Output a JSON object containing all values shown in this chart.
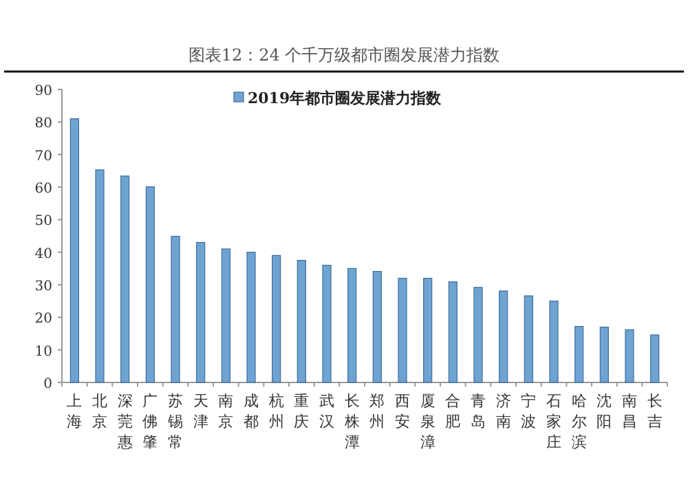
{
  "chart_data": {
    "type": "bar",
    "title": "图表12：24 个千万级都市圈发展潜力指数",
    "categories": [
      "上海",
      "北京",
      "深莞惠",
      "广佛肇",
      "苏锡常",
      "天津",
      "南京",
      "成都",
      "杭州",
      "重庆",
      "武汉",
      "长株潭",
      "郑州",
      "西安",
      "厦泉漳",
      "合肥",
      "青岛",
      "济南",
      "宁波",
      "石家庄",
      "哈尔滨",
      "沈阳",
      "南昌",
      "长吉"
    ],
    "series": [
      {
        "name": "2019年都市圈发展潜力指数",
        "color": "#6fa3d2",
        "values": [
          81,
          65.3,
          63.4,
          60.1,
          44.9,
          43,
          41,
          40,
          39,
          37.5,
          36,
          35,
          34.1,
          32,
          32,
          30.9,
          29.2,
          28.1,
          26.6,
          25,
          17.2,
          17,
          16.2,
          14.6
        ]
      }
    ],
    "ylim": [
      0,
      90
    ],
    "yticks": [
      0,
      10,
      20,
      30,
      40,
      50,
      60,
      70,
      80,
      90
    ],
    "legend": "top",
    "grid": false
  }
}
